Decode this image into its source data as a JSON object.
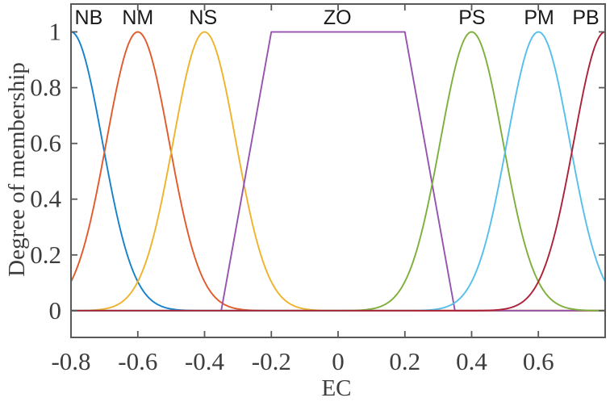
{
  "figure": {
    "background": "#ffffff",
    "axis_color": "#595959",
    "tick_text_color": "#3d3d3d",
    "mf_label_color": "#1a1a1a"
  },
  "chart_data": {
    "type": "line",
    "title": "",
    "xlabel": "EC",
    "ylabel": "Degree of membership",
    "xlim": [
      -0.8,
      0.8
    ],
    "ylim": [
      -0.096,
      1.1
    ],
    "grid": false,
    "legend": "none",
    "box": true,
    "tick_direction": "in",
    "x_ticks": {
      "values": [
        -0.8,
        -0.6,
        -0.4,
        -0.2,
        0,
        0.2,
        0.4,
        0.6
      ],
      "labels": [
        "-0.8",
        "-0.6",
        "-0.4",
        "-0.2",
        "0",
        "0.2",
        "0.4",
        "0.6"
      ]
    },
    "y_ticks": {
      "values": [
        0,
        0.2,
        0.4,
        0.6,
        0.8,
        1
      ],
      "labels": [
        "0",
        "0.2",
        "0.4",
        "0.6",
        "0.8",
        "1"
      ]
    },
    "series": [
      {
        "name": "NB",
        "mf_type": "gaussian",
        "center": -0.8,
        "sigma": 0.094,
        "color": "#1581CC",
        "label_x": -0.747
      },
      {
        "name": "NM",
        "mf_type": "gaussian",
        "center": -0.6,
        "sigma": 0.094,
        "color": "#E2592B",
        "label_x": -0.6
      },
      {
        "name": "NS",
        "mf_type": "gaussian",
        "center": -0.4,
        "sigma": 0.094,
        "color": "#EFB32B",
        "label_x": -0.404
      },
      {
        "name": "ZO",
        "mf_type": "trapezoid",
        "params": [
          -0.35,
          -0.2,
          0.2,
          0.35
        ],
        "color": "#9553AE",
        "label_x": -0.002
      },
      {
        "name": "PS",
        "mf_type": "gaussian",
        "center": 0.4,
        "sigma": 0.094,
        "color": "#7DAF3A",
        "label_x": 0.401
      },
      {
        "name": "PM",
        "mf_type": "gaussian",
        "center": 0.6,
        "sigma": 0.094,
        "color": "#55BFEC",
        "label_x": 0.602
      },
      {
        "name": "PB",
        "mf_type": "gaussian",
        "center": 0.8,
        "sigma": 0.094,
        "color": "#AC2138",
        "label_x": 0.742
      }
    ]
  }
}
